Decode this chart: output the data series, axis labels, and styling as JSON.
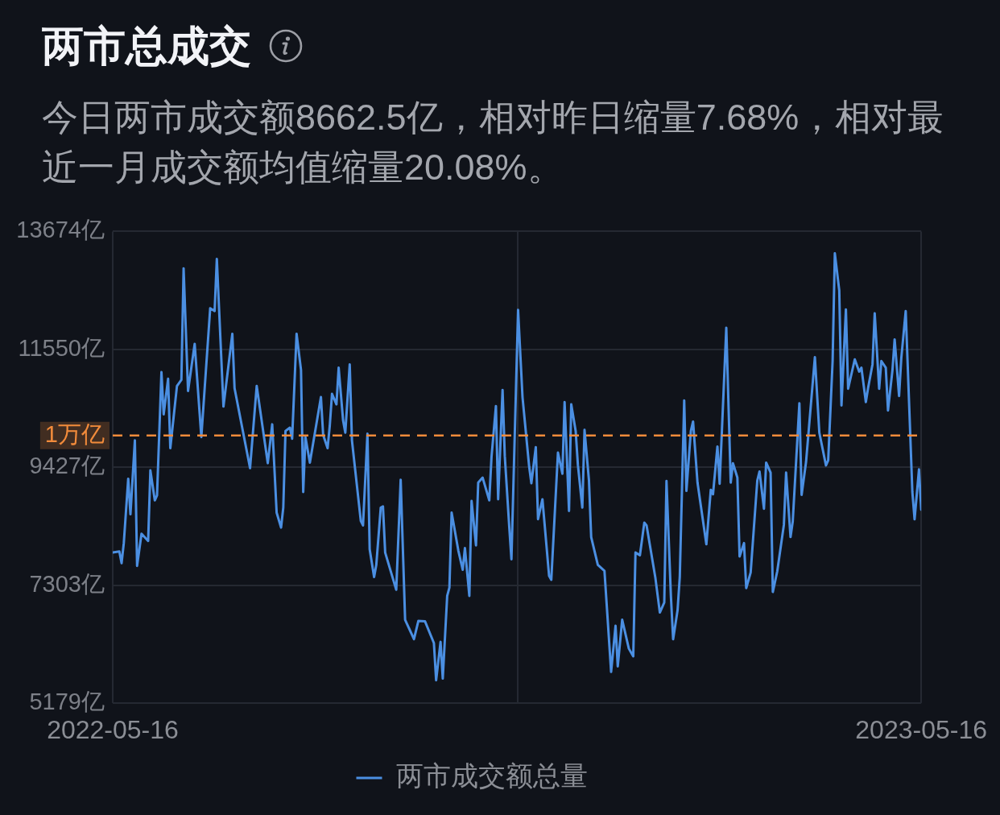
{
  "chart_data": {
    "type": "line",
    "title": "两市总成交",
    "subtitle": "今日两市成交额8662.5亿，相对昨日缩量7.68%，相对最近一月成交额均值缩量20.08%。",
    "x": [
      "2022-05-16",
      "2022-05-19",
      "2022-05-20",
      "2022-05-21",
      "2022-05-23",
      "2022-05-24",
      "2022-05-26",
      "2022-05-27",
      "2022-05-29",
      "2022-06-01",
      "2022-06-02",
      "2022-06-04",
      "2022-06-05",
      "2022-06-07",
      "2022-06-08",
      "2022-06-10",
      "2022-06-11",
      "2022-06-13",
      "2022-06-14",
      "2022-06-16",
      "2022-06-17",
      "2022-06-19",
      "2022-06-22",
      "2022-06-25",
      "2022-06-29",
      "2022-07-01",
      "2022-07-02",
      "2022-07-05",
      "2022-07-09",
      "2022-07-10",
      "2022-07-17",
      "2022-07-20",
      "2022-07-25",
      "2022-07-27",
      "2022-07-29",
      "2022-07-31",
      "2022-08-01",
      "2022-08-02",
      "2022-08-04",
      "2022-08-05",
      "2022-08-07",
      "2022-08-09",
      "2022-08-10",
      "2022-08-11",
      "2022-08-13",
      "2022-08-18",
      "2022-08-19",
      "2022-08-21",
      "2022-08-22",
      "2022-08-23",
      "2022-08-25",
      "2022-08-26",
      "2022-08-28",
      "2022-08-29",
      "2022-08-31",
      "2022-09-01",
      "2022-09-05",
      "2022-09-06",
      "2022-09-08",
      "2022-09-09",
      "2022-09-11",
      "2022-09-12",
      "2022-09-14",
      "2022-09-15",
      "2022-09-16",
      "2022-09-21",
      "2022-09-23",
      "2022-09-25",
      "2022-09-29",
      "2022-10-01",
      "2022-10-04",
      "2022-10-08",
      "2022-10-09",
      "2022-10-11",
      "2022-10-12",
      "2022-10-14",
      "2022-10-15",
      "2022-10-16",
      "2022-10-19",
      "2022-10-21",
      "2022-10-22",
      "2022-10-24",
      "2022-10-25",
      "2022-10-27",
      "2022-10-28",
      "2022-10-30",
      "2022-11-02",
      "2022-11-03",
      "2022-11-05",
      "2022-11-06",
      "2022-11-08",
      "2022-11-09",
      "2022-11-11",
      "2022-11-12",
      "2022-11-15",
      "2022-11-17",
      "2022-11-20",
      "2022-11-21",
      "2022-11-23",
      "2022-11-24",
      "2022-11-26",
      "2022-11-29",
      "2022-11-30",
      "2022-12-03",
      "2022-12-05",
      "2022-12-06",
      "2022-12-08",
      "2022-12-09",
      "2022-12-11",
      "2022-12-12",
      "2022-12-14",
      "2022-12-15",
      "2022-12-17",
      "2022-12-18",
      "2022-12-21",
      "2022-12-24",
      "2022-12-26",
      "2022-12-27",
      "2022-12-29",
      "2022-12-30",
      "2023-01-01",
      "2023-01-04",
      "2023-01-06",
      "2023-01-07",
      "2023-01-09",
      "2023-01-11",
      "2023-01-12",
      "2023-01-16",
      "2023-01-18",
      "2023-01-20",
      "2023-01-21",
      "2023-01-23",
      "2023-01-24",
      "2023-01-26",
      "2023-01-27",
      "2023-01-29",
      "2023-01-30",
      "2023-02-01",
      "2023-02-02",
      "2023-02-04",
      "2023-02-08",
      "2023-02-10",
      "2023-02-11",
      "2023-02-13",
      "2023-02-14",
      "2023-02-17",
      "2023-02-19",
      "2023-02-20",
      "2023-02-22",
      "2023-02-23",
      "2023-02-25",
      "2023-02-26",
      "2023-02-28",
      "2023-03-03",
      "2023-03-04",
      "2023-03-06",
      "2023-03-07",
      "2023-03-09",
      "2023-03-10",
      "2023-03-12",
      "2023-03-15",
      "2023-03-16",
      "2023-03-18",
      "2023-03-19",
      "2023-03-22",
      "2023-03-23",
      "2023-03-25",
      "2023-03-29",
      "2023-03-31",
      "2023-04-03",
      "2023-04-04",
      "2023-04-06",
      "2023-04-07",
      "2023-04-09",
      "2023-04-10",
      "2023-04-12",
      "2023-04-13",
      "2023-04-16",
      "2023-04-18",
      "2023-04-19",
      "2023-04-21",
      "2023-04-22",
      "2023-04-24",
      "2023-04-25",
      "2023-04-27",
      "2023-04-28",
      "2023-04-30",
      "2023-05-01",
      "2023-05-03",
      "2023-05-04",
      "2023-05-06",
      "2023-05-07",
      "2023-05-09",
      "2023-05-12",
      "2023-05-13",
      "2023-05-15",
      "2023-05-16"
    ],
    "series": [
      {
        "name": "两市成交额总量",
        "color": "#4b8fe2",
        "values": [
          7890,
          7910,
          7700,
          8060,
          9220,
          8580,
          9910,
          7650,
          8230,
          8100,
          9370,
          8830,
          8920,
          11140,
          10380,
          11020,
          9770,
          10520,
          10890,
          11000,
          13010,
          10800,
          11650,
          9970,
          12290,
          12240,
          13180,
          10520,
          11830,
          10850,
          9410,
          10890,
          9500,
          10200,
          8610,
          8340,
          8700,
          10080,
          10140,
          9940,
          11830,
          11180,
          8980,
          9970,
          9510,
          10690,
          10010,
          9770,
          10180,
          10750,
          10560,
          11220,
          10270,
          10050,
          11280,
          9910,
          8460,
          8380,
          10030,
          7950,
          7450,
          7670,
          8700,
          8720,
          7890,
          7220,
          9200,
          6680,
          6330,
          6660,
          6650,
          6260,
          5590,
          6280,
          5620,
          7110,
          7260,
          8610,
          7930,
          7580,
          7970,
          7110,
          8820,
          8020,
          9150,
          9240,
          8830,
          9610,
          10530,
          8850,
          10820,
          9630,
          8360,
          7770,
          12260,
          10690,
          9440,
          9140,
          9790,
          8490,
          8850,
          7470,
          7400,
          9690,
          9310,
          10600,
          8640,
          10560,
          10080,
          9470,
          8700,
          10100,
          9190,
          8170,
          7670,
          7560,
          6350,
          5740,
          6570,
          5840,
          6680,
          6160,
          6020,
          7890,
          7840,
          8430,
          8380,
          7430,
          6810,
          6990,
          9180,
          7100,
          6330,
          6850,
          7450,
          10630,
          9000,
          10080,
          10250,
          9150,
          8040,
          9020,
          8940,
          9800,
          9130,
          11940,
          9150,
          9500,
          9240,
          7820,
          8060,
          7250,
          7530,
          9190,
          9350,
          8680,
          9510,
          9330,
          7180,
          7550,
          8390,
          9330,
          8170,
          8450,
          10580,
          8930,
          9520,
          11410,
          10050,
          9460,
          9550,
          11340,
          13280,
          12610,
          10540,
          12270,
          10840,
          11370,
          11150,
          11220,
          10600,
          10850,
          11280,
          12200,
          10840,
          11340,
          11220,
          10450,
          11170,
          11730,
          10710,
          11390,
          12240,
          8980,
          8490,
          9390,
          8660
        ]
      }
    ],
    "xlim": [
      "2022-05-16",
      "2023-05-16"
    ],
    "xticks": [
      "2022-05-16",
      {
        "value": "2022-11-15",
        "label": null
      },
      "2023-05-16"
    ],
    "ylim": [
      5179,
      13674
    ],
    "yticks": [
      {
        "value": 5179,
        "label": "5179亿"
      },
      {
        "value": 7303,
        "label": "7303亿"
      },
      {
        "value": 9427,
        "label": "9427亿"
      },
      {
        "value": 11550,
        "label": "11550亿"
      },
      {
        "value": 13674,
        "label": "13674亿"
      }
    ],
    "ref_lines": [
      {
        "axis": "y",
        "value": 10000,
        "label": "1万亿",
        "color": "#f28b3b",
        "line_style": "dashed"
      }
    ],
    "grid": true,
    "legend": "bottom",
    "marker": "none"
  }
}
